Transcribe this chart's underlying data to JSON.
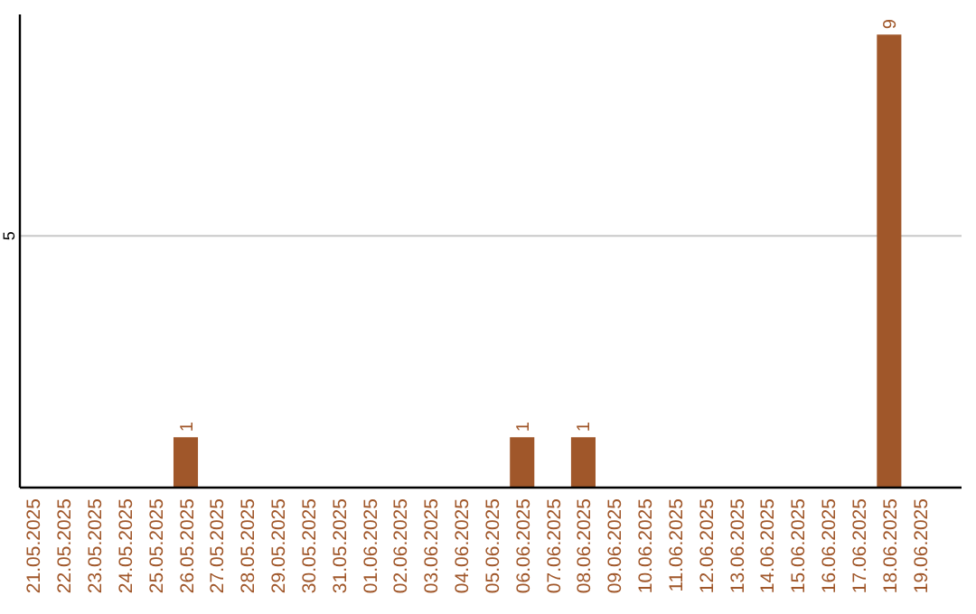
{
  "chart_data": {
    "type": "bar",
    "categories": [
      "21.05.2025",
      "22.05.2025",
      "23.05.2025",
      "24.05.2025",
      "25.05.2025",
      "26.05.2025",
      "27.05.2025",
      "28.05.2025",
      "29.05.2025",
      "30.05.2025",
      "31.05.2025",
      "01.06.2025",
      "02.06.2025",
      "03.06.2025",
      "04.06.2025",
      "05.06.2025",
      "06.06.2025",
      "07.06.2025",
      "08.06.2025",
      "09.06.2025",
      "10.06.2025",
      "11.06.2025",
      "12.06.2025",
      "13.06.2025",
      "14.06.2025",
      "15.06.2025",
      "16.06.2025",
      "17.06.2025",
      "18.06.2025",
      "19.06.2025"
    ],
    "values": [
      0,
      0,
      0,
      0,
      0,
      1,
      0,
      0,
      0,
      0,
      0,
      0,
      0,
      0,
      0,
      0,
      1,
      0,
      1,
      0,
      0,
      0,
      0,
      0,
      0,
      0,
      0,
      0,
      9,
      0
    ],
    "value_labels": [
      null,
      null,
      null,
      null,
      null,
      "1",
      null,
      null,
      null,
      null,
      null,
      null,
      null,
      null,
      null,
      null,
      "1",
      null,
      "1",
      null,
      null,
      null,
      null,
      null,
      null,
      null,
      null,
      null,
      "9",
      null
    ],
    "color": "#a0572a",
    "ylim": [
      0,
      9.4
    ],
    "yticks": [
      5
    ],
    "grid": "y"
  }
}
